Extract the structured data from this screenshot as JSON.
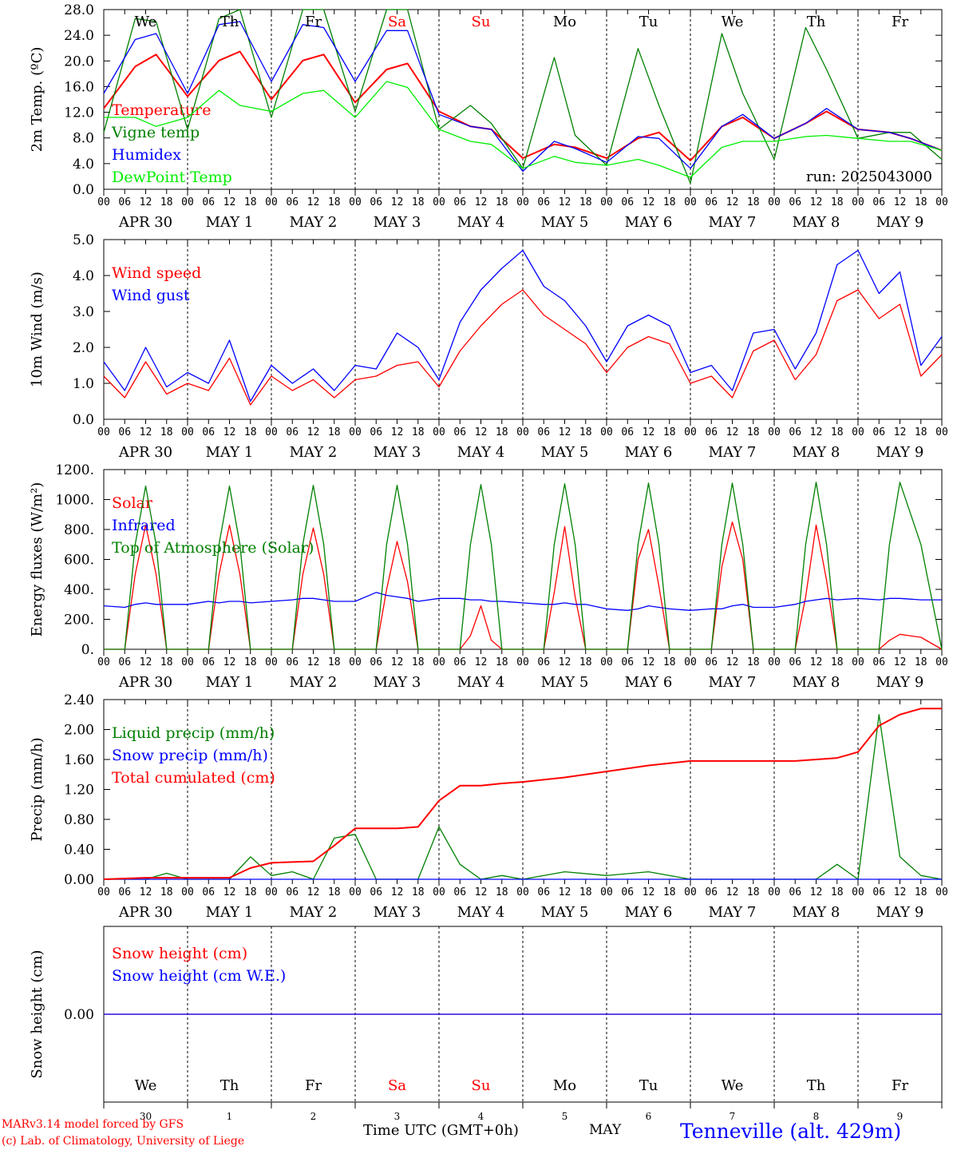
{
  "chart_data": [
    {
      "type": "line",
      "ylabel": "2m Temp. (ºC)",
      "ylim": [
        0,
        30
      ],
      "yticks": [
        "0.0",
        "4.0",
        "8.0",
        "12.0",
        "16.0",
        "20.0",
        "24.0",
        "28.0"
      ],
      "day_names": [
        "We",
        "Th",
        "Fr",
        "Sa",
        "Su",
        "Mo",
        "Tu",
        "We",
        "Th",
        "Fr"
      ],
      "run_label": "run: 2025043000",
      "x": [
        0,
        9,
        15,
        24,
        33,
        39,
        48,
        57,
        63,
        72,
        81,
        87,
        96,
        105,
        111,
        120,
        129,
        135,
        144,
        153,
        159,
        168,
        177,
        183,
        192,
        201,
        207,
        216,
        225,
        231,
        240
      ],
      "series": [
        {
          "name": "Temperature",
          "color": "#ff0000",
          "values": [
            13.5,
            20.5,
            22.5,
            15.5,
            21.5,
            23,
            15,
            21.5,
            22.5,
            14.5,
            20,
            21,
            13,
            10.5,
            10,
            5.2,
            7.5,
            7,
            5.2,
            8.5,
            9.5,
            4.8,
            10.5,
            12,
            8.5,
            11,
            13,
            10,
            9.5,
            8.5,
            6.5
          ]
        },
        {
          "name": "Vigne temp",
          "color": "#008000",
          "values": [
            9.5,
            28.5,
            28,
            10,
            28.5,
            30,
            12,
            30,
            30,
            13,
            30,
            30,
            10,
            14,
            11,
            3.5,
            22,
            9,
            4,
            23.5,
            14,
            1,
            26,
            16,
            5,
            27,
            20,
            8.5,
            9.5,
            9.5,
            5
          ]
        },
        {
          "name": "Humidex",
          "color": "#0000ff",
          "values": [
            16,
            25,
            26,
            16,
            27.5,
            28,
            18,
            27.5,
            27,
            18,
            26.5,
            26.5,
            12.5,
            10.5,
            10,
            3,
            8,
            6.8,
            4.5,
            8.8,
            8.5,
            3.5,
            10.5,
            12.5,
            8.5,
            11,
            13.5,
            10,
            9.5,
            8.5,
            6.5
          ]
        },
        {
          "name": "DewPoint Temp",
          "color": "#00ee00",
          "values": [
            12,
            12,
            10.5,
            12,
            16.5,
            14,
            13,
            16,
            16.5,
            12,
            18,
            17,
            10,
            8,
            7.5,
            3.5,
            5.5,
            4.5,
            4,
            5,
            4,
            2,
            7,
            8,
            8,
            8.8,
            9,
            8.5,
            8,
            8,
            6.5
          ]
        }
      ]
    },
    {
      "type": "line",
      "ylabel": "10m Wind (m/s)",
      "ylim": [
        0,
        5
      ],
      "yticks": [
        "0.0",
        "1.0",
        "2.0",
        "3.0",
        "4.0",
        "5.0"
      ],
      "x": [
        0,
        6,
        12,
        18,
        24,
        30,
        36,
        42,
        48,
        54,
        60,
        66,
        72,
        78,
        84,
        90,
        96,
        102,
        108,
        114,
        120,
        126,
        132,
        138,
        144,
        150,
        156,
        162,
        168,
        174,
        180,
        186,
        192,
        198,
        204,
        210,
        216,
        222,
        228,
        234,
        240
      ],
      "series": [
        {
          "name": "Wind speed",
          "color": "#ff0000",
          "values": [
            1.2,
            0.6,
            1.6,
            0.7,
            1.0,
            0.8,
            1.7,
            0.4,
            1.2,
            0.8,
            1.1,
            0.6,
            1.1,
            1.2,
            1.5,
            1.6,
            0.9,
            1.9,
            2.6,
            3.2,
            3.6,
            2.9,
            2.5,
            2.1,
            1.3,
            2.0,
            2.3,
            2.1,
            1.0,
            1.2,
            0.6,
            1.9,
            2.2,
            1.1,
            1.8,
            3.3,
            3.6,
            2.8,
            3.2,
            1.2,
            1.8
          ]
        },
        {
          "name": "Wind gust",
          "color": "#0000ff",
          "values": [
            1.6,
            0.8,
            2.0,
            0.9,
            1.3,
            1.0,
            2.2,
            0.5,
            1.5,
            1.0,
            1.4,
            0.8,
            1.5,
            1.4,
            2.4,
            2.0,
            1.1,
            2.7,
            3.6,
            4.2,
            4.7,
            3.7,
            3.3,
            2.6,
            1.6,
            2.6,
            2.9,
            2.6,
            1.3,
            1.5,
            0.8,
            2.4,
            2.5,
            1.4,
            2.4,
            4.3,
            4.7,
            3.5,
            4.1,
            1.5,
            2.3
          ]
        }
      ]
    },
    {
      "type": "line",
      "ylabel": "Energy fluxes (W/m²)",
      "ylim": [
        0,
        1200
      ],
      "yticks": [
        "0.",
        "200.",
        "400.",
        "600.",
        "800.",
        "1000.",
        "1200."
      ],
      "x": [
        0,
        6,
        9,
        12,
        15,
        18,
        24,
        30,
        33,
        36,
        39,
        42,
        48,
        54,
        57,
        60,
        63,
        66,
        72,
        78,
        81,
        84,
        87,
        90,
        96,
        102,
        105,
        108,
        111,
        114,
        120,
        126,
        129,
        132,
        135,
        138,
        144,
        150,
        153,
        156,
        159,
        162,
        168,
        174,
        177,
        180,
        183,
        186,
        192,
        198,
        201,
        204,
        207,
        210,
        216,
        222,
        225,
        228,
        234,
        240
      ],
      "series": [
        {
          "name": "Solar",
          "color": "#ff0000",
          "values": [
            0,
            0,
            500,
            830,
            500,
            0,
            0,
            0,
            500,
            830,
            500,
            0,
            0,
            0,
            500,
            810,
            500,
            0,
            0,
            0,
            400,
            720,
            450,
            0,
            0,
            0,
            90,
            290,
            60,
            0,
            0,
            0,
            380,
            820,
            350,
            0,
            0,
            0,
            600,
            800,
            420,
            0,
            0,
            0,
            550,
            850,
            600,
            0,
            0,
            0,
            350,
            830,
            460,
            0,
            0,
            0,
            60,
            100,
            80,
            0
          ]
        },
        {
          "name": "Infrared",
          "color": "#0000ff",
          "values": [
            290,
            280,
            300,
            310,
            300,
            300,
            300,
            320,
            310,
            320,
            320,
            310,
            320,
            330,
            340,
            340,
            330,
            320,
            320,
            380,
            360,
            350,
            340,
            320,
            340,
            340,
            330,
            330,
            320,
            320,
            310,
            300,
            300,
            310,
            300,
            300,
            270,
            260,
            270,
            290,
            280,
            270,
            260,
            270,
            270,
            290,
            300,
            280,
            280,
            300,
            320,
            330,
            340,
            330,
            340,
            330,
            340,
            340,
            330,
            330
          ]
        },
        {
          "name": "Top of Atmosphere (Solar)",
          "color": "#008000",
          "values": [
            0,
            0,
            700,
            1090,
            700,
            0,
            0,
            0,
            700,
            1090,
            700,
            0,
            0,
            0,
            700,
            1095,
            700,
            0,
            0,
            0,
            700,
            1095,
            700,
            0,
            0,
            0,
            700,
            1100,
            700,
            0,
            0,
            0,
            700,
            1105,
            700,
            0,
            0,
            0,
            700,
            1110,
            700,
            0,
            0,
            0,
            700,
            1110,
            700,
            0,
            0,
            0,
            700,
            1115,
            700,
            0,
            0,
            0,
            700,
            1115,
            700,
            0
          ]
        }
      ]
    },
    {
      "type": "line",
      "ylabel": "Precip (mm/h)",
      "ylim": [
        0,
        2.4
      ],
      "yticks": [
        "0.00",
        "0.40",
        "0.80",
        "1.20",
        "1.60",
        "2.00",
        "2.40"
      ],
      "x": [
        0,
        12,
        18,
        24,
        30,
        36,
        42,
        48,
        54,
        60,
        66,
        72,
        78,
        84,
        90,
        96,
        102,
        108,
        114,
        120,
        132,
        144,
        156,
        168,
        180,
        192,
        198,
        204,
        210,
        213,
        216,
        222,
        228,
        234,
        240
      ],
      "series": [
        {
          "name": "Liquid precip (mm/h)",
          "color": "#008000",
          "values": [
            0,
            0,
            0.08,
            0,
            0,
            0,
            0.3,
            0.05,
            0.1,
            0,
            0.55,
            0.6,
            0,
            0,
            0,
            0.7,
            0.2,
            0,
            0.05,
            0,
            0.1,
            0.05,
            0.1,
            0,
            0,
            0,
            0,
            0,
            0.2,
            0.1,
            0,
            2.2,
            0.3,
            0.05,
            0
          ]
        },
        {
          "name": "Snow precip (mm/h)",
          "color": "#0000ff",
          "values": [
            0,
            0,
            0,
            0,
            0,
            0,
            0,
            0,
            0,
            0,
            0,
            0,
            0,
            0,
            0,
            0,
            0,
            0,
            0,
            0,
            0,
            0,
            0,
            0,
            0,
            0,
            0,
            0,
            0,
            0,
            0,
            0,
            0,
            0,
            0
          ]
        },
        {
          "name": "Total cumulated (cm)",
          "color": "#ff0000",
          "values": [
            0,
            0.02,
            0.02,
            0.02,
            0.02,
            0.02,
            0.15,
            0.22,
            0.23,
            0.24,
            0.45,
            0.68,
            0.68,
            0.68,
            0.7,
            1.05,
            1.25,
            1.25,
            1.28,
            1.3,
            1.36,
            1.44,
            1.52,
            1.58,
            1.58,
            1.58,
            1.58,
            1.6,
            1.62,
            1.66,
            1.7,
            2.05,
            2.2,
            2.28,
            2.28
          ]
        }
      ]
    },
    {
      "type": "line",
      "ylabel": "Snow height (cm)",
      "yticks": [
        "0.00"
      ],
      "x": [
        0,
        240
      ],
      "series": [
        {
          "name": "Snow height (cm)",
          "color": "#ff0000",
          "values": [
            0,
            0
          ]
        },
        {
          "name": "Snow height (cm W.E.)",
          "color": "#0000ff",
          "values": [
            0,
            0
          ]
        }
      ]
    }
  ],
  "xaxis": {
    "hour_ticks": [
      "00",
      "06",
      "12",
      "18"
    ],
    "end_tick": "00",
    "date_labels": [
      "APR 30",
      "MAY  1",
      "MAY  2",
      "MAY  3",
      "MAY  4",
      "MAY  5",
      "MAY  6",
      "MAY  7",
      "MAY  8",
      "MAY  9"
    ],
    "bottom_day_numbers": [
      "30",
      "1",
      "2",
      "3",
      "4",
      "5",
      "6",
      "7",
      "8",
      "9"
    ],
    "weekend_color": "#ff0000",
    "weekend_indices": [
      3,
      4
    ]
  },
  "footer": {
    "credit_line1": "MARv3.14 model forced by GFS",
    "credit_line2": "(c) Lab. of Climatology, University of Liege",
    "time_label": "Time UTC (GMT+0h)",
    "month_label": "MAY",
    "station": "Tenneville (alt. 429m)",
    "credit_color": "#ff0000",
    "station_color": "#0000ff"
  }
}
